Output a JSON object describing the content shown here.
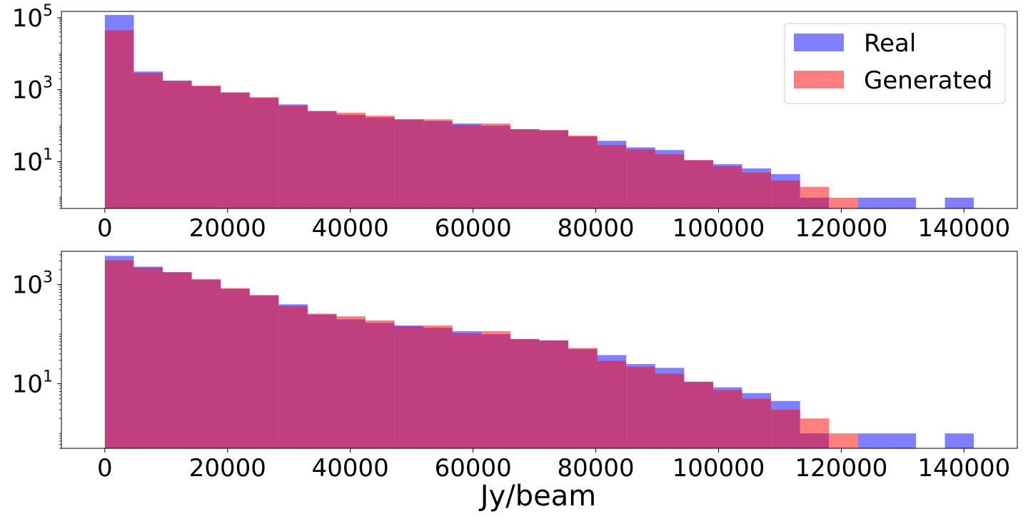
{
  "chart_data": [
    {
      "type": "histogram",
      "yscale": "log",
      "xlim": [
        -7080,
        148680
      ],
      "ylim": [
        0.5,
        150000
      ],
      "x_ticks": [
        "0",
        "20000",
        "40000",
        "60000",
        "80000",
        "100000",
        "120000",
        "140000"
      ],
      "y_ticks": [
        {
          "value": 10,
          "base": "10",
          "exp": "1"
        },
        {
          "value": 1000,
          "base": "10",
          "exp": "3"
        },
        {
          "value": 100000,
          "base": "10",
          "exp": "5"
        }
      ],
      "xlabel": "",
      "legend": {
        "position": "top-right",
        "entries": [
          "Real",
          "Generated"
        ]
      },
      "bin_edges": [
        0,
        4720,
        9440,
        14160,
        18880,
        23600,
        28320,
        33040,
        37760,
        42480,
        47200,
        51920,
        56640,
        61360,
        66080,
        70800,
        75520,
        80240,
        84960,
        89680,
        94400,
        99120,
        103840,
        108560,
        113280,
        118000,
        122720,
        127440,
        132160,
        136880,
        141600
      ],
      "series": [
        {
          "name": "Real",
          "color": "#0000ff",
          "alpha": 0.5,
          "values": [
            120000,
            3200,
            1800,
            1250,
            820,
            590,
            390,
            250,
            200,
            170,
            150,
            135,
            115,
            100,
            80,
            75,
            50,
            38,
            25,
            21,
            11,
            8.5,
            6.5,
            4.5,
            1,
            0,
            1,
            1,
            0,
            1
          ]
        },
        {
          "name": "Generated",
          "color": "#ff0000",
          "alpha": 0.5,
          "values": [
            45000,
            2900,
            1750,
            1300,
            850,
            620,
            360,
            260,
            230,
            190,
            150,
            150,
            105,
            115,
            80,
            75,
            53,
            29,
            22,
            16,
            11,
            7.5,
            5,
            3,
            2,
            1,
            0,
            0,
            0,
            0
          ]
        }
      ]
    },
    {
      "type": "histogram",
      "yscale": "log",
      "xlim": [
        -7080,
        148680
      ],
      "ylim": [
        0.5,
        4700
      ],
      "x_ticks": [
        "0",
        "20000",
        "40000",
        "60000",
        "80000",
        "100000",
        "120000",
        "140000"
      ],
      "y_ticks": [
        {
          "value": 10,
          "base": "10",
          "exp": "1"
        },
        {
          "value": 1000,
          "base": "10",
          "exp": "3"
        }
      ],
      "xlabel": "Jy/beam",
      "bin_edges": [
        0,
        4720,
        9440,
        14160,
        18880,
        23600,
        28320,
        33040,
        37760,
        42480,
        47200,
        51920,
        56640,
        61360,
        66080,
        70800,
        75520,
        80240,
        84960,
        89680,
        94400,
        99120,
        103840,
        108560,
        113280,
        118000,
        122720,
        127440,
        132160,
        136880,
        141600
      ],
      "series": [
        {
          "name": "Real",
          "color": "#0000ff",
          "alpha": 0.5,
          "values": [
            3800,
            2300,
            1800,
            1250,
            820,
            600,
            400,
            250,
            200,
            170,
            150,
            135,
            115,
            100,
            80,
            75,
            50,
            38,
            25,
            21,
            11,
            8.5,
            6.5,
            4.5,
            1,
            0,
            1,
            1,
            0,
            1
          ]
        },
        {
          "name": "Generated",
          "color": "#ff0000",
          "alpha": 0.5,
          "values": [
            3100,
            2200,
            1750,
            1300,
            850,
            620,
            370,
            260,
            230,
            190,
            145,
            150,
            105,
            115,
            80,
            75,
            53,
            29,
            22,
            16,
            11,
            7.5,
            5,
            3,
            2,
            1,
            0,
            0,
            0,
            0
          ]
        }
      ]
    }
  ]
}
